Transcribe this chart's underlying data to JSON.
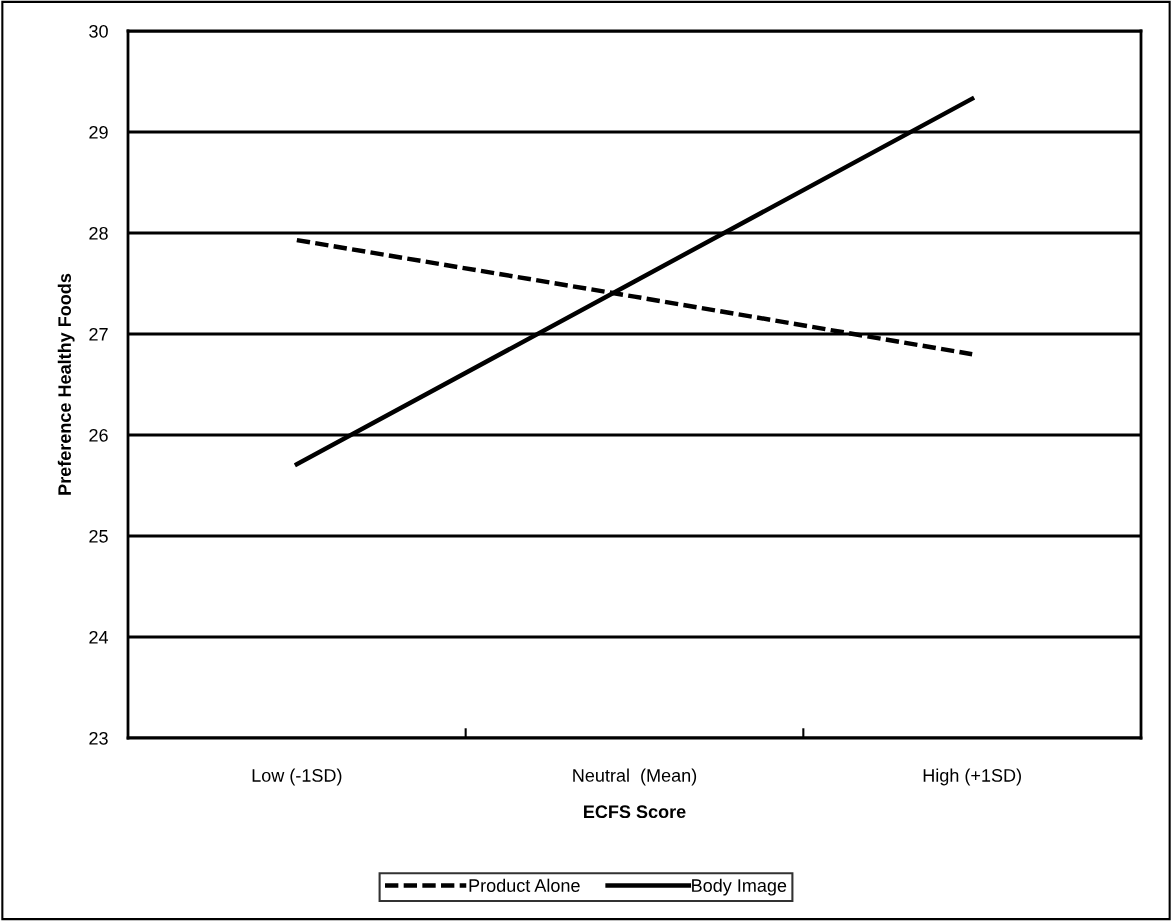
{
  "chart_data": {
    "type": "line",
    "xlabel": "ECFS Score",
    "ylabel": "Preference Healthy Foods",
    "categories": [
      "Low (-1SD)",
      "Neutral  (Mean)",
      "High (+1SD)"
    ],
    "series": [
      {
        "name": "Product Alone",
        "color": "#000000",
        "values": [
          27.93,
          27.37,
          26.8
        ],
        "line_style": "dashed"
      },
      {
        "name": "Body Image",
        "color": "#000000",
        "values": [
          25.71,
          27.52,
          29.33
        ],
        "line_style": "solid"
      }
    ],
    "ylim": [
      23,
      30
    ],
    "yticks": [
      23,
      24,
      25,
      26,
      27,
      28,
      29,
      30
    ],
    "grid": "y",
    "legend": "bottom",
    "marker": "none"
  }
}
